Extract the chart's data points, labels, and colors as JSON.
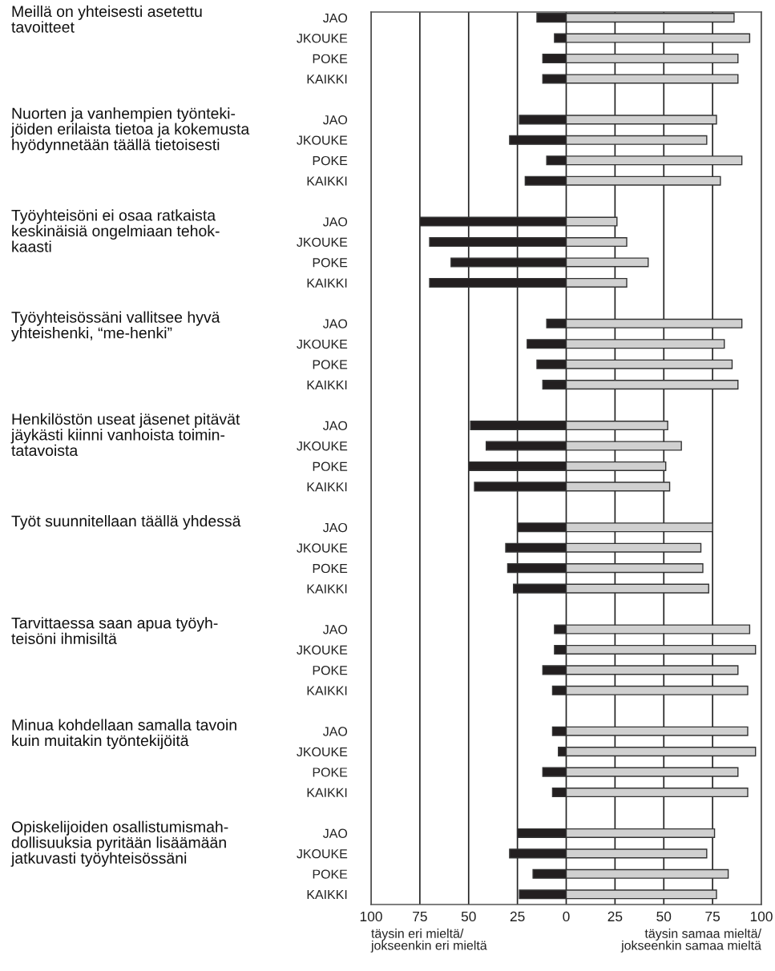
{
  "chart_data": {
    "type": "bar",
    "orientation": "horizontal",
    "stacked": true,
    "grid": "x",
    "categories": [
      "JAO",
      "JKOUKE",
      "POKE",
      "KAIKKI",
      null,
      "JAO",
      "JKOUKE",
      "POKE",
      "KAIKKI",
      null,
      "JAO",
      "JKOUKE",
      "POKE",
      "KAIKKI",
      null,
      "JAO",
      "JKOUKE",
      "POKE",
      "KAIKKI",
      null,
      "JAO",
      "JKOUKE",
      "POKE",
      "KAIKKI",
      null,
      "JAO",
      "JKOUKE",
      "POKE",
      "KAIKKI",
      null,
      "JAO",
      "JKOUKE",
      "POKE",
      "KAIKKI",
      null,
      "JAO",
      "JKOUKE",
      "POKE",
      "KAIKKI",
      null,
      "JAO",
      "JKOUKE",
      "POKE",
      "KAIKKI"
    ],
    "xlim": [
      -100,
      100
    ],
    "xticks": [
      {
        "value": -100,
        "label": "100"
      },
      {
        "value": -75,
        "label": "75"
      },
      {
        "value": -50,
        "label": "50"
      },
      {
        "value": -25,
        "label": "25"
      },
      0,
      25,
      50,
      75,
      100
    ],
    "annotations": [
      "Meillä on yhteisesti asetettu\ntavoitteet",
      "Nuorten ja vanhempien työnteki-\njöiden erilaista tietoa ja kokemusta\nhyödynnetään täällä tietoisesti",
      "Työyhteisöni ei osaa ratkaista\nkeskinäisiä ongelmiaan tehok-\nkaasti",
      "Työyhteisössäni vallitsee hyvä\nyhteishenki, “me-henki”",
      "Henkilöstön useat jäsenet pitävät\njäykästi kiinni vanhoista toimin-\ntatavoista",
      "Työt suunnitellaan täällä yhdessä",
      "Tarvittaessa saan apua työyh-\nteisöni ihmisiltä",
      "Minua kohdellaan samalla tavoin\nkuin muitakin työntekijöitä",
      "Opiskelijoiden osallistumismah-\ndollisuuksia pyritään lisäämään\njatkuvasti työyhteisössäni",
      "täysin eri mieltä/\njokseenkin eri mieltä",
      "täysin samaa mieltä/\njokseenkin samaa mieltä"
    ],
    "series": [
      {
        "color": "#231f20",
        "values": [
          -15,
          -6,
          -12,
          -12,
          null,
          -24,
          -29,
          -10,
          -21,
          null,
          -75,
          -70,
          -59,
          -70,
          null,
          -10,
          -20,
          -15,
          -12,
          null,
          -49,
          -41,
          -50,
          -47,
          null,
          -25,
          -31,
          -30,
          -27,
          null,
          -6,
          -6,
          -12,
          -7,
          null,
          -7,
          -4,
          -12,
          -7,
          null,
          -25,
          -29,
          -17,
          -24
        ]
      },
      {
        "color": "#d0d0d0",
        "values": [
          86,
          94,
          88,
          88,
          null,
          77,
          72,
          90,
          79,
          null,
          26,
          31,
          42,
          31,
          null,
          90,
          81,
          85,
          88,
          null,
          52,
          59,
          51,
          53,
          null,
          75,
          69,
          70,
          73,
          null,
          94,
          97,
          88,
          93,
          null,
          93,
          97,
          88,
          93,
          null,
          76,
          72,
          83,
          77
        ]
      }
    ]
  }
}
